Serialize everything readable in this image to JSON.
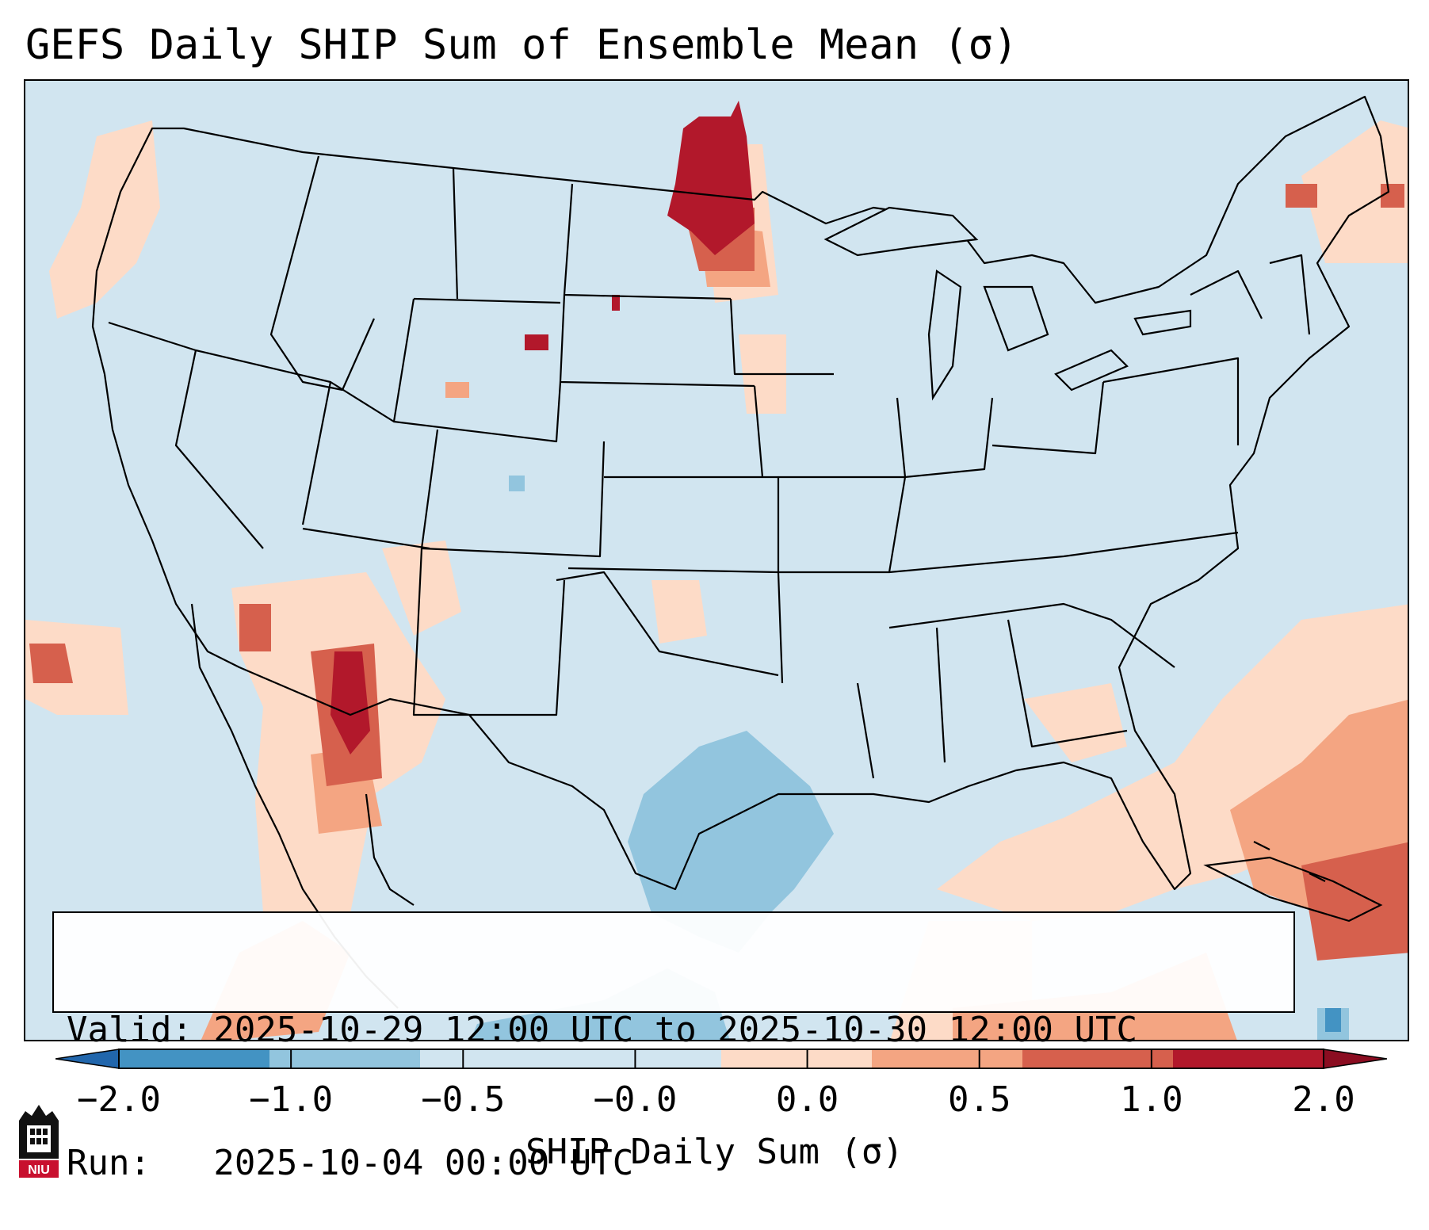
{
  "title": "GEFS Daily SHIP Sum of Ensemble Mean (σ)",
  "info": {
    "valid_line": "Valid: 2025-10-29 12:00 UTC to 2025-10-30 12:00 UTC",
    "run_line": "Run:   2025-10-04 00:00 UTC"
  },
  "colorbar": {
    "label": "SHIP Daily Sum (σ)",
    "ticks": [
      "−2.0",
      "−1.0",
      "−0.5",
      "−0.0",
      "0.0",
      "0.5",
      "1.0",
      "2.0"
    ],
    "colors": [
      "#4393c3",
      "#92c5de",
      "#d1e5f0",
      "#d1e5f0",
      "#fddbc7",
      "#f4a582",
      "#d6604d",
      "#b2182b"
    ]
  },
  "map": {
    "region": "Contiguous United States",
    "features": [
      {
        "name": "northern-plains-maximum",
        "value_sigma": 2.0
      },
      {
        "name": "arizona-maximum",
        "value_sigma": 2.0
      },
      {
        "name": "texas-gulf-minimum",
        "value_sigma": -1.0
      },
      {
        "name": "caribbean-positive-anomaly",
        "value_sigma": 1.0
      }
    ]
  },
  "logo": {
    "text": "NIU",
    "icon": "niu-logo-icon"
  }
}
